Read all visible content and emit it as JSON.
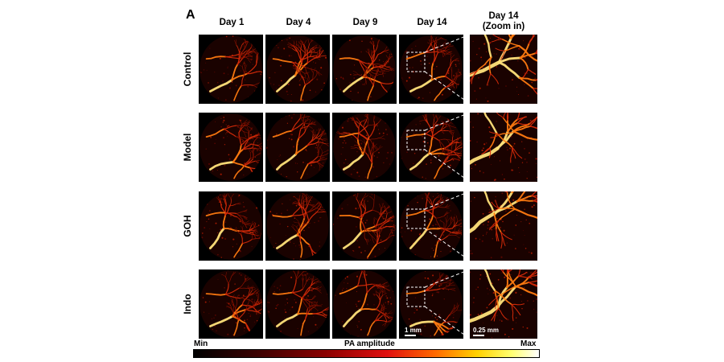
{
  "figure": {
    "panel_letter": "A",
    "columns": [
      "Day 1",
      "Day 4",
      "Day 9",
      "Day 14"
    ],
    "zoom_column": {
      "line1": "Day 14",
      "line2": "(Zoom in)"
    },
    "rows": [
      "Control",
      "Model",
      "GOH",
      "Indo"
    ],
    "scale_bars": {
      "main": "1 mm",
      "zoom": "0.25 mm"
    },
    "colorbar": {
      "min_label": "Min",
      "title": "PA amplitude",
      "max_label": "Max"
    },
    "colors": {
      "background": "#000000",
      "vessel_low": "#8a0000",
      "vessel_mid": "#ff5a00",
      "vessel_high": "#ffe060"
    }
  }
}
